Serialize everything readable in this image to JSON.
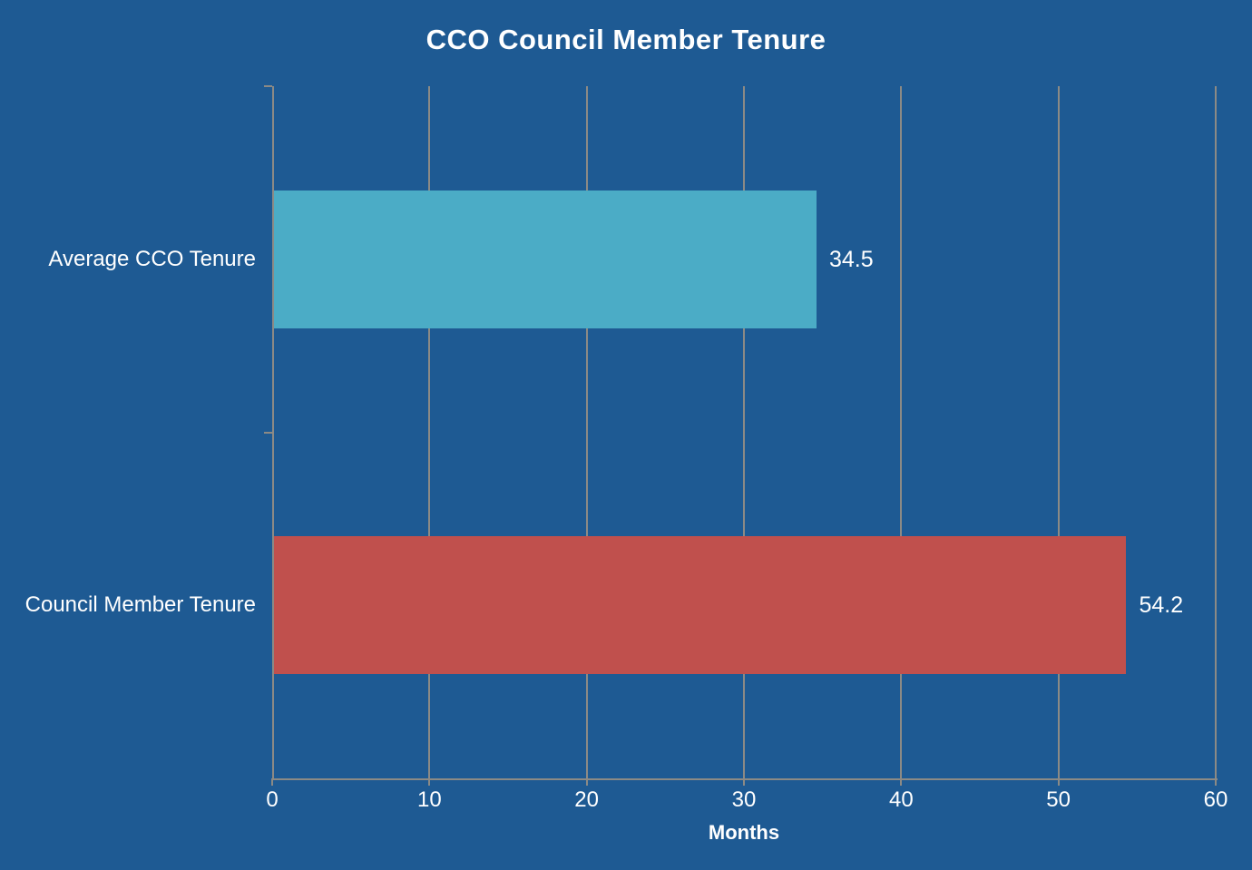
{
  "title": "CCO Council Member Tenure",
  "colors": {
    "background": "#1E5A93",
    "axis": "#8C8A85",
    "text": "#FFFFFF",
    "bar_average_cco": "#4BACC6",
    "bar_council_member": "#C0504D"
  },
  "chart_data": {
    "type": "bar",
    "orientation": "horizontal",
    "title": "CCO Council Member Tenure",
    "categories": [
      "Average CCO Tenure",
      "Council Member Tenure"
    ],
    "values": [
      34.5,
      54.2
    ],
    "value_labels": [
      "34.5",
      "54.2"
    ],
    "bar_colors": [
      "#4BACC6",
      "#C0504D"
    ],
    "xlabel": "Months",
    "ylabel": "",
    "xlim": [
      0,
      60
    ],
    "xticks": [
      0,
      10,
      20,
      30,
      40,
      50,
      60
    ],
    "grid": "vertical",
    "legend_position": "none"
  }
}
